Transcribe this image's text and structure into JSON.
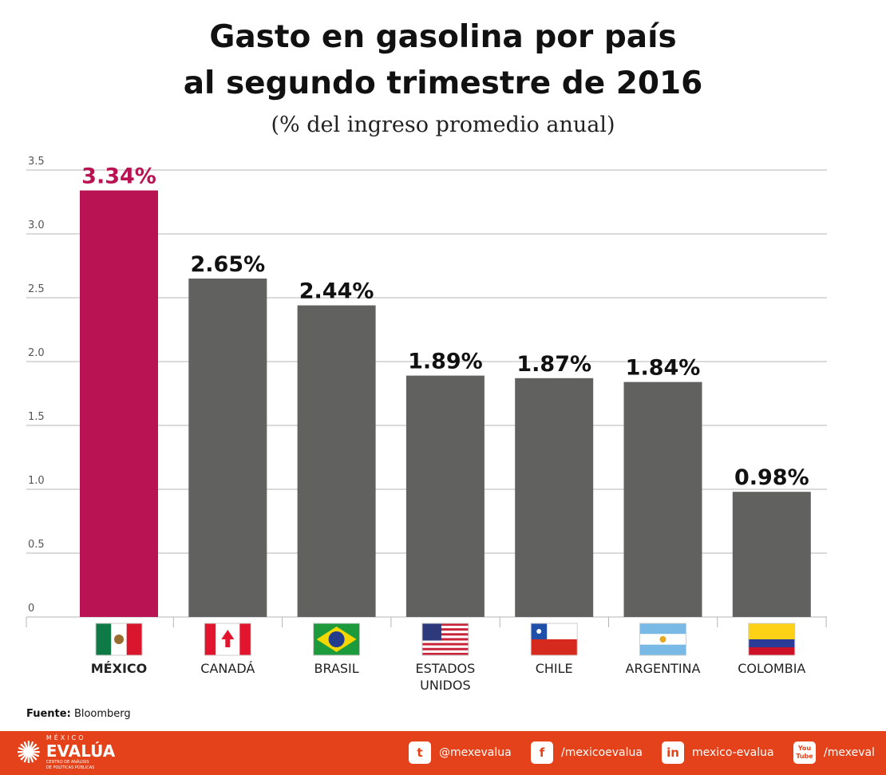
{
  "chart_data": {
    "type": "bar",
    "title": "Gasto en gasolina por país al segundo trimestre de 2016",
    "title_lines": [
      "Gasto en gasolina por país",
      "al segundo trimestre de 2016"
    ],
    "subtitle": "(% del ingreso promedio anual)",
    "categories": [
      "MÉXICO",
      "CANADÁ",
      "BRASIL",
      "ESTADOS UNIDOS",
      "CHILE",
      "ARGENTINA",
      "COLOMBIA"
    ],
    "category_lines": [
      [
        "MÉXICO"
      ],
      [
        "CANADÁ"
      ],
      [
        "BRASIL"
      ],
      [
        "ESTADOS",
        "UNIDOS"
      ],
      [
        "CHILE"
      ],
      [
        "ARGENTINA"
      ],
      [
        "COLOMBIA"
      ]
    ],
    "values": [
      3.34,
      2.65,
      2.44,
      1.89,
      1.87,
      1.84,
      0.98
    ],
    "data_labels": [
      "3.34%",
      "2.65%",
      "2.44%",
      "1.89%",
      "1.87%",
      "1.84%",
      "0.98%"
    ],
    "yticks": [
      "0",
      "0.5",
      "1.0",
      "1.5",
      "2.0",
      "2.5",
      "3.0",
      "3.5"
    ],
    "ylim": [
      0,
      3.5
    ],
    "xlabel": "",
    "ylabel": "",
    "grid": true,
    "highlight_index": 0,
    "colors": {
      "highlight": "#b91353",
      "bar": "#616160",
      "grid": "#b5b5b5"
    },
    "flags": [
      "mexico-flag",
      "canada-flag",
      "brazil-flag",
      "usa-flag",
      "chile-flag",
      "argentina-flag",
      "colombia-flag"
    ]
  },
  "source": {
    "label": "Fuente:",
    "value": "Bloomberg"
  },
  "footer": {
    "logo": {
      "top": "MÉXICO",
      "main": "EVALÚA",
      "sub1": "CENTRO DE ANÁLISIS",
      "sub2": "DE POLÍTICAS PÚBLICAS"
    },
    "social": [
      {
        "icon": "twitter-icon",
        "handle": "@mexevalua"
      },
      {
        "icon": "facebook-icon",
        "handle": "/mexicoevalua"
      },
      {
        "icon": "linkedin-icon",
        "handle": "mexico-evalua"
      },
      {
        "icon": "youtube-icon",
        "handle": "/mexeval"
      }
    ]
  }
}
